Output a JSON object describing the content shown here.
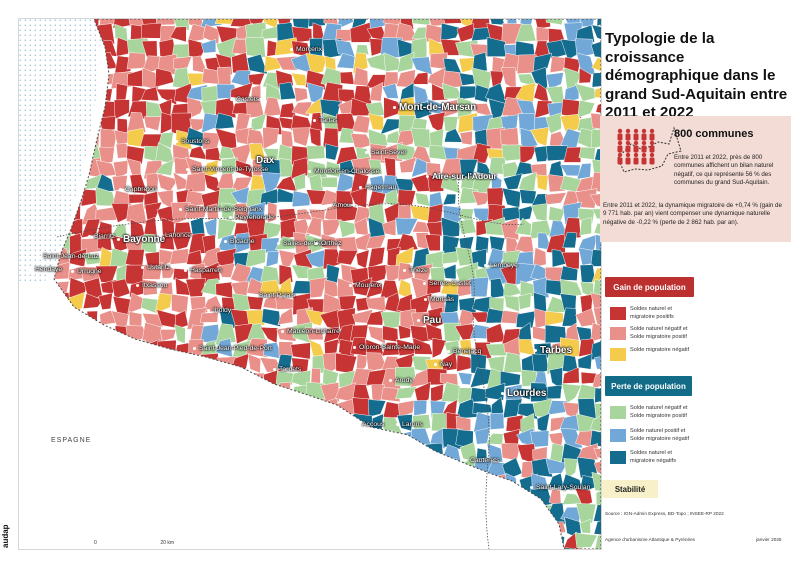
{
  "map": {
    "country_label": "ESPAGNE",
    "scale_start": "0",
    "scale_end": "20 km",
    "logo_text": "audap",
    "cities": [
      {
        "name": "Morcenx",
        "size": "small",
        "dot": true
      },
      {
        "name": "Castets",
        "size": "small",
        "dot": true
      },
      {
        "name": "Tartas",
        "size": "small",
        "dot": true
      },
      {
        "name": "Mont-de-Marsan",
        "size": "major",
        "dot": true
      },
      {
        "name": "Soustons",
        "size": "small",
        "dot": true
      },
      {
        "name": "Saint-Sever",
        "size": "small",
        "dot": true
      },
      {
        "name": "Dax",
        "size": "major",
        "dot": true
      },
      {
        "name": "Saint-Vincent-de-Tyrosse",
        "size": "small",
        "dot": true
      },
      {
        "name": "Montfort-en-Chalosse",
        "size": "small",
        "dot": true
      },
      {
        "name": "Aire-sur-l'Adour",
        "size": "medium",
        "dot": true
      },
      {
        "name": "Hagetmau",
        "size": "small",
        "dot": true
      },
      {
        "name": "Capbreton",
        "size": "small",
        "dot": true
      },
      {
        "name": "Saint-Martin-de-Seignanx",
        "size": "small",
        "dot": true
      },
      {
        "name": "Amou",
        "size": "small",
        "dot": true
      },
      {
        "name": "Peyrehorade",
        "size": "small",
        "dot": true
      },
      {
        "name": "Bayonne",
        "size": "major",
        "dot": true
      },
      {
        "name": "Biarritz",
        "size": "small",
        "dot": true
      },
      {
        "name": "Lahonce",
        "size": "small",
        "dot": true
      },
      {
        "name": "Bidache",
        "size": "small",
        "dot": true
      },
      {
        "name": "Salies-de-Béarn",
        "size": "small",
        "dot": true
      },
      {
        "name": "Orthez",
        "size": "small",
        "dot": true
      },
      {
        "name": "Saint-Jean-de-Luz",
        "size": "small",
        "dot": true
      },
      {
        "name": "Hendaye",
        "size": "small",
        "dot": true
      },
      {
        "name": "Urrugne",
        "size": "small",
        "dot": true
      },
      {
        "name": "Ustaritz",
        "size": "small",
        "dot": true
      },
      {
        "name": "Hasparren",
        "size": "small",
        "dot": true
      },
      {
        "name": "Thèze",
        "size": "small",
        "dot": true
      },
      {
        "name": "Lembeye",
        "size": "small",
        "dot": true
      },
      {
        "name": "Itxassou",
        "size": "small",
        "dot": true
      },
      {
        "name": "Mourenx",
        "size": "small",
        "dot": true
      },
      {
        "name": "Serres-Castet",
        "size": "small",
        "dot": true
      },
      {
        "name": "Morlaàs",
        "size": "small",
        "dot": true
      },
      {
        "name": "Saint-Palais",
        "size": "small",
        "dot": true
      },
      {
        "name": "Iholdy",
        "size": "small",
        "dot": true
      },
      {
        "name": "Pau",
        "size": "major",
        "dot": true
      },
      {
        "name": "Mauléon-Licharre",
        "size": "small",
        "dot": true
      },
      {
        "name": "Saint-Jean-Pied-de-Port",
        "size": "small",
        "dot": true
      },
      {
        "name": "Oloron-Sainte-Marie",
        "size": "small",
        "dot": true
      },
      {
        "name": "Nay",
        "size": "small",
        "dot": true
      },
      {
        "name": "Bénéjacq",
        "size": "small",
        "dot": true
      },
      {
        "name": "Tarbes",
        "size": "major",
        "dot": true
      },
      {
        "name": "Tardets",
        "size": "small",
        "dot": true
      },
      {
        "name": "Arudy",
        "size": "small",
        "dot": true
      },
      {
        "name": "Lourdes",
        "size": "major",
        "dot": true
      },
      {
        "name": "Accous",
        "size": "small",
        "dot": true
      },
      {
        "name": "Laruns",
        "size": "small",
        "dot": true
      },
      {
        "name": "Cauterets",
        "size": "small",
        "dot": true
      },
      {
        "name": "Saint-Lary-Soulan",
        "size": "small",
        "dot": true
      }
    ]
  },
  "sidebar": {
    "title_lines": [
      "Typologie de la croissance",
      "démographique dans le",
      "grand Sud-Aquitain entre",
      "2011 et 2022"
    ],
    "info_title": "800 communes",
    "info_text_1": "Entre 2011 et 2022, près de 800 communes affichent un bilan naturel négatif, ce qui représente 56 % des communes du grand Sud-Aquitain.",
    "info_text_2": "Entre 2011 et 2022, la dynamique migratoire de +0,74 % (gain de 9 771 hab. par an) vient compenser une dynamique naturelle négative de -0,22 % (perte de 2 862 hab. par an).",
    "gain_header": "Gain de population",
    "perte_header": "Perte de population",
    "stability_label": "Stabilité",
    "source": "Source : IGN-Admin Express, BD-Topo ; INSEE-RP 2022",
    "agency": "Agence d'urbanisme Atlantique & Pyrénées",
    "date": "janvier 2025",
    "legend": {
      "gain": [
        {
          "line1": "Soldes naturel et",
          "line2": "migratoire positifs",
          "color": "#c63434"
        },
        {
          "line1": "Solde naturel négatif et",
          "line2": "Solde migratoire positif",
          "color": "#e89089"
        },
        {
          "line1": "Solde migratoire négatif",
          "line2": "",
          "color": "#f4cb4b"
        }
      ],
      "perte": [
        {
          "line1": "Solde naturel négatif et",
          "line2": "Solde migratoire positif",
          "color": "#a8d59c"
        },
        {
          "line1": "Solde naturel positif et",
          "line2": "Solde migratoire négatif",
          "color": "#72a8d7"
        },
        {
          "line1": "Soldes naturel et",
          "line2": "migratoire négatifs",
          "color": "#146c8e"
        }
      ]
    }
  }
}
